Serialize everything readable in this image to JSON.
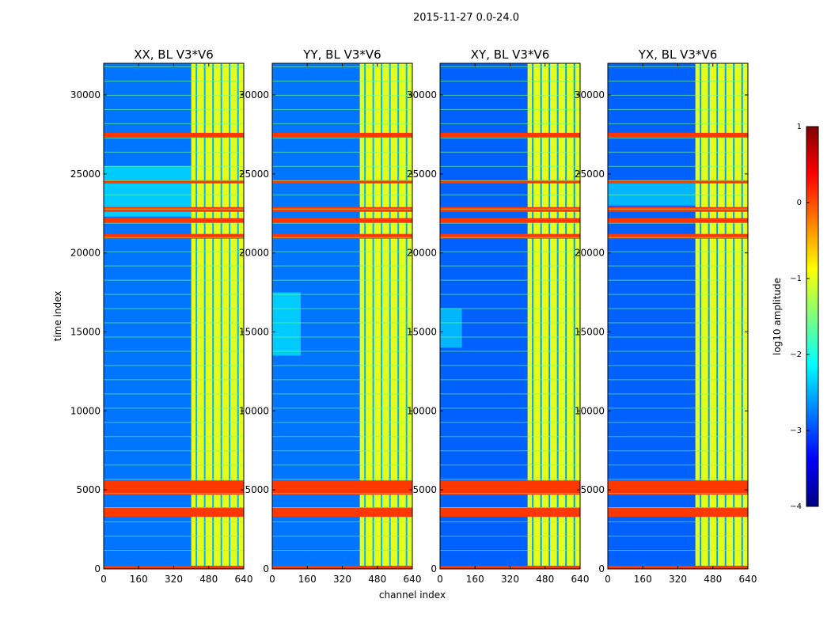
{
  "suptitle": "2015-11-27 0.0-24.0",
  "colormap": [
    "#00007f",
    "#0000ff",
    "#007fff",
    "#00ffff",
    "#7fff7f",
    "#ffff00",
    "#ff7f00",
    "#ff0000",
    "#7f0000"
  ],
  "chart_data": [
    {
      "type": "heatmap",
      "title": "XX, BL V3*V6",
      "xlabel": "",
      "ylabel": "time index",
      "xlim": [
        0,
        640
      ],
      "ylim": [
        0,
        32000
      ],
      "xticks": [
        "0",
        "160",
        "320",
        "480",
        "640"
      ],
      "yticks": [
        "0",
        "5000",
        "10000",
        "15000",
        "20000",
        "25000",
        "30000"
      ],
      "z_scale": "log10 amplitude",
      "background_level": -2.8,
      "rfi_channel_band": [
        400,
        640
      ],
      "rfi_band_level": -1.0,
      "bright_time_bands": [
        [
          0,
          200
        ],
        [
          3300,
          3900
        ],
        [
          4700,
          5600
        ],
        [
          20900,
          21200
        ],
        [
          21900,
          22200
        ],
        [
          22600,
          22900
        ],
        [
          24400,
          24600
        ],
        [
          27300,
          27600
        ]
      ],
      "excess_region_channels": [
        0,
        400
      ],
      "excess_region_time": [
        22300,
        25500
      ]
    },
    {
      "type": "heatmap",
      "title": "YY, BL V3*V6",
      "xlabel": "channel index",
      "ylabel": "",
      "xlim": [
        0,
        640
      ],
      "ylim": [
        0,
        32000
      ],
      "xticks": [
        "0",
        "160",
        "320",
        "480",
        "640"
      ],
      "yticks": [
        "0",
        "5000",
        "10000",
        "15000",
        "20000",
        "25000",
        "30000"
      ],
      "z_scale": "log10 amplitude",
      "background_level": -2.8,
      "rfi_channel_band": [
        400,
        640
      ],
      "rfi_band_level": -1.0,
      "bright_time_bands": [
        [
          0,
          200
        ],
        [
          3300,
          3900
        ],
        [
          4700,
          5600
        ],
        [
          20900,
          21200
        ],
        [
          21900,
          22200
        ],
        [
          22600,
          22900
        ],
        [
          24400,
          24600
        ],
        [
          27300,
          27600
        ]
      ],
      "excess_region_channels": [
        0,
        130
      ],
      "excess_region_time": [
        13500,
        17500
      ]
    },
    {
      "type": "heatmap",
      "title": "XY, BL V3*V6",
      "xlabel": "",
      "ylabel": "",
      "xlim": [
        0,
        640
      ],
      "ylim": [
        0,
        32000
      ],
      "xticks": [
        "0",
        "160",
        "320",
        "480",
        "640"
      ],
      "yticks": [
        "0",
        "5000",
        "10000",
        "15000",
        "20000",
        "25000",
        "30000"
      ],
      "z_scale": "log10 amplitude",
      "background_level": -2.9,
      "rfi_channel_band": [
        400,
        640
      ],
      "rfi_band_level": -1.0,
      "bright_time_bands": [
        [
          0,
          200
        ],
        [
          3300,
          3900
        ],
        [
          4700,
          5600
        ],
        [
          20900,
          21200
        ],
        [
          21900,
          22200
        ],
        [
          22600,
          22900
        ],
        [
          24400,
          24600
        ],
        [
          27300,
          27600
        ]
      ],
      "excess_region_channels": [
        0,
        100
      ],
      "excess_region_time": [
        14000,
        16500
      ]
    },
    {
      "type": "heatmap",
      "title": "YX, BL V3*V6",
      "xlabel": "",
      "ylabel": "",
      "xlim": [
        0,
        640
      ],
      "ylim": [
        0,
        32000
      ],
      "xticks": [
        "0",
        "160",
        "320",
        "480",
        "640"
      ],
      "yticks": [
        "0",
        "5000",
        "10000",
        "15000",
        "20000",
        "25000",
        "30000"
      ],
      "z_scale": "log10 amplitude",
      "background_level": -2.9,
      "rfi_channel_band": [
        400,
        640
      ],
      "rfi_band_level": -1.0,
      "bright_time_bands": [
        [
          0,
          200
        ],
        [
          3300,
          3900
        ],
        [
          4700,
          5600
        ],
        [
          20900,
          21200
        ],
        [
          21900,
          22200
        ],
        [
          22600,
          22900
        ],
        [
          24400,
          24600
        ],
        [
          27300,
          27600
        ]
      ],
      "excess_region_channels": [
        0,
        400
      ],
      "excess_region_time": [
        23000,
        24500
      ]
    }
  ],
  "colorbar": {
    "label": "log10 amplitude",
    "min": -4,
    "max": 1,
    "ticks": [
      "1",
      "0",
      "−1",
      "−2",
      "−3",
      "−4"
    ]
  }
}
